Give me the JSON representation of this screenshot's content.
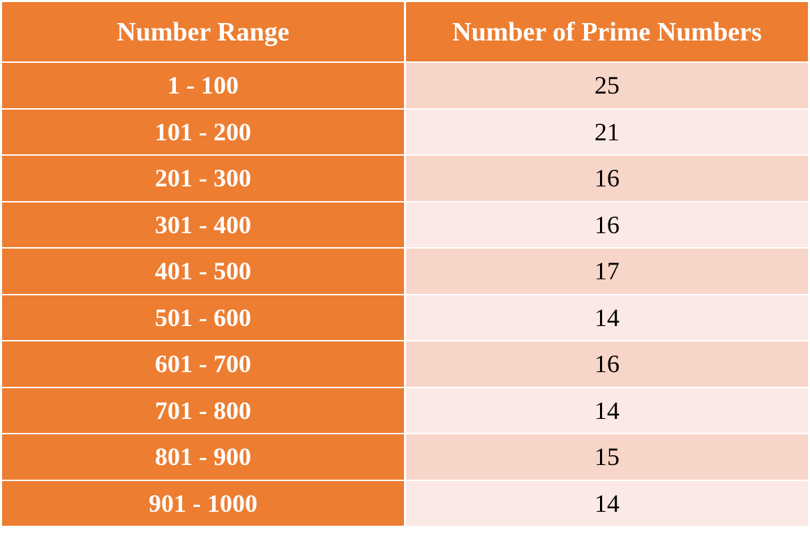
{
  "table": {
    "headers": [
      "Number Range",
      "Number of Prime Numbers"
    ],
    "rows": [
      {
        "range": "1 - 100",
        "count": "25"
      },
      {
        "range": "101 - 200",
        "count": "21"
      },
      {
        "range": "201 - 300",
        "count": "16"
      },
      {
        "range": "301 - 400",
        "count": "16"
      },
      {
        "range": "401 - 500",
        "count": "17"
      },
      {
        "range": "501 - 600",
        "count": "14"
      },
      {
        "range": "601 - 700",
        "count": "16"
      },
      {
        "range": "701 - 800",
        "count": "14"
      },
      {
        "range": "801 - 900",
        "count": "15"
      },
      {
        "range": "901 - 1000",
        "count": "14"
      }
    ]
  },
  "colors": {
    "header_bg": "#ed7d31",
    "row_odd": "#f8d5c9",
    "row_even": "#fbe9e5",
    "header_text": "#ffffff"
  }
}
